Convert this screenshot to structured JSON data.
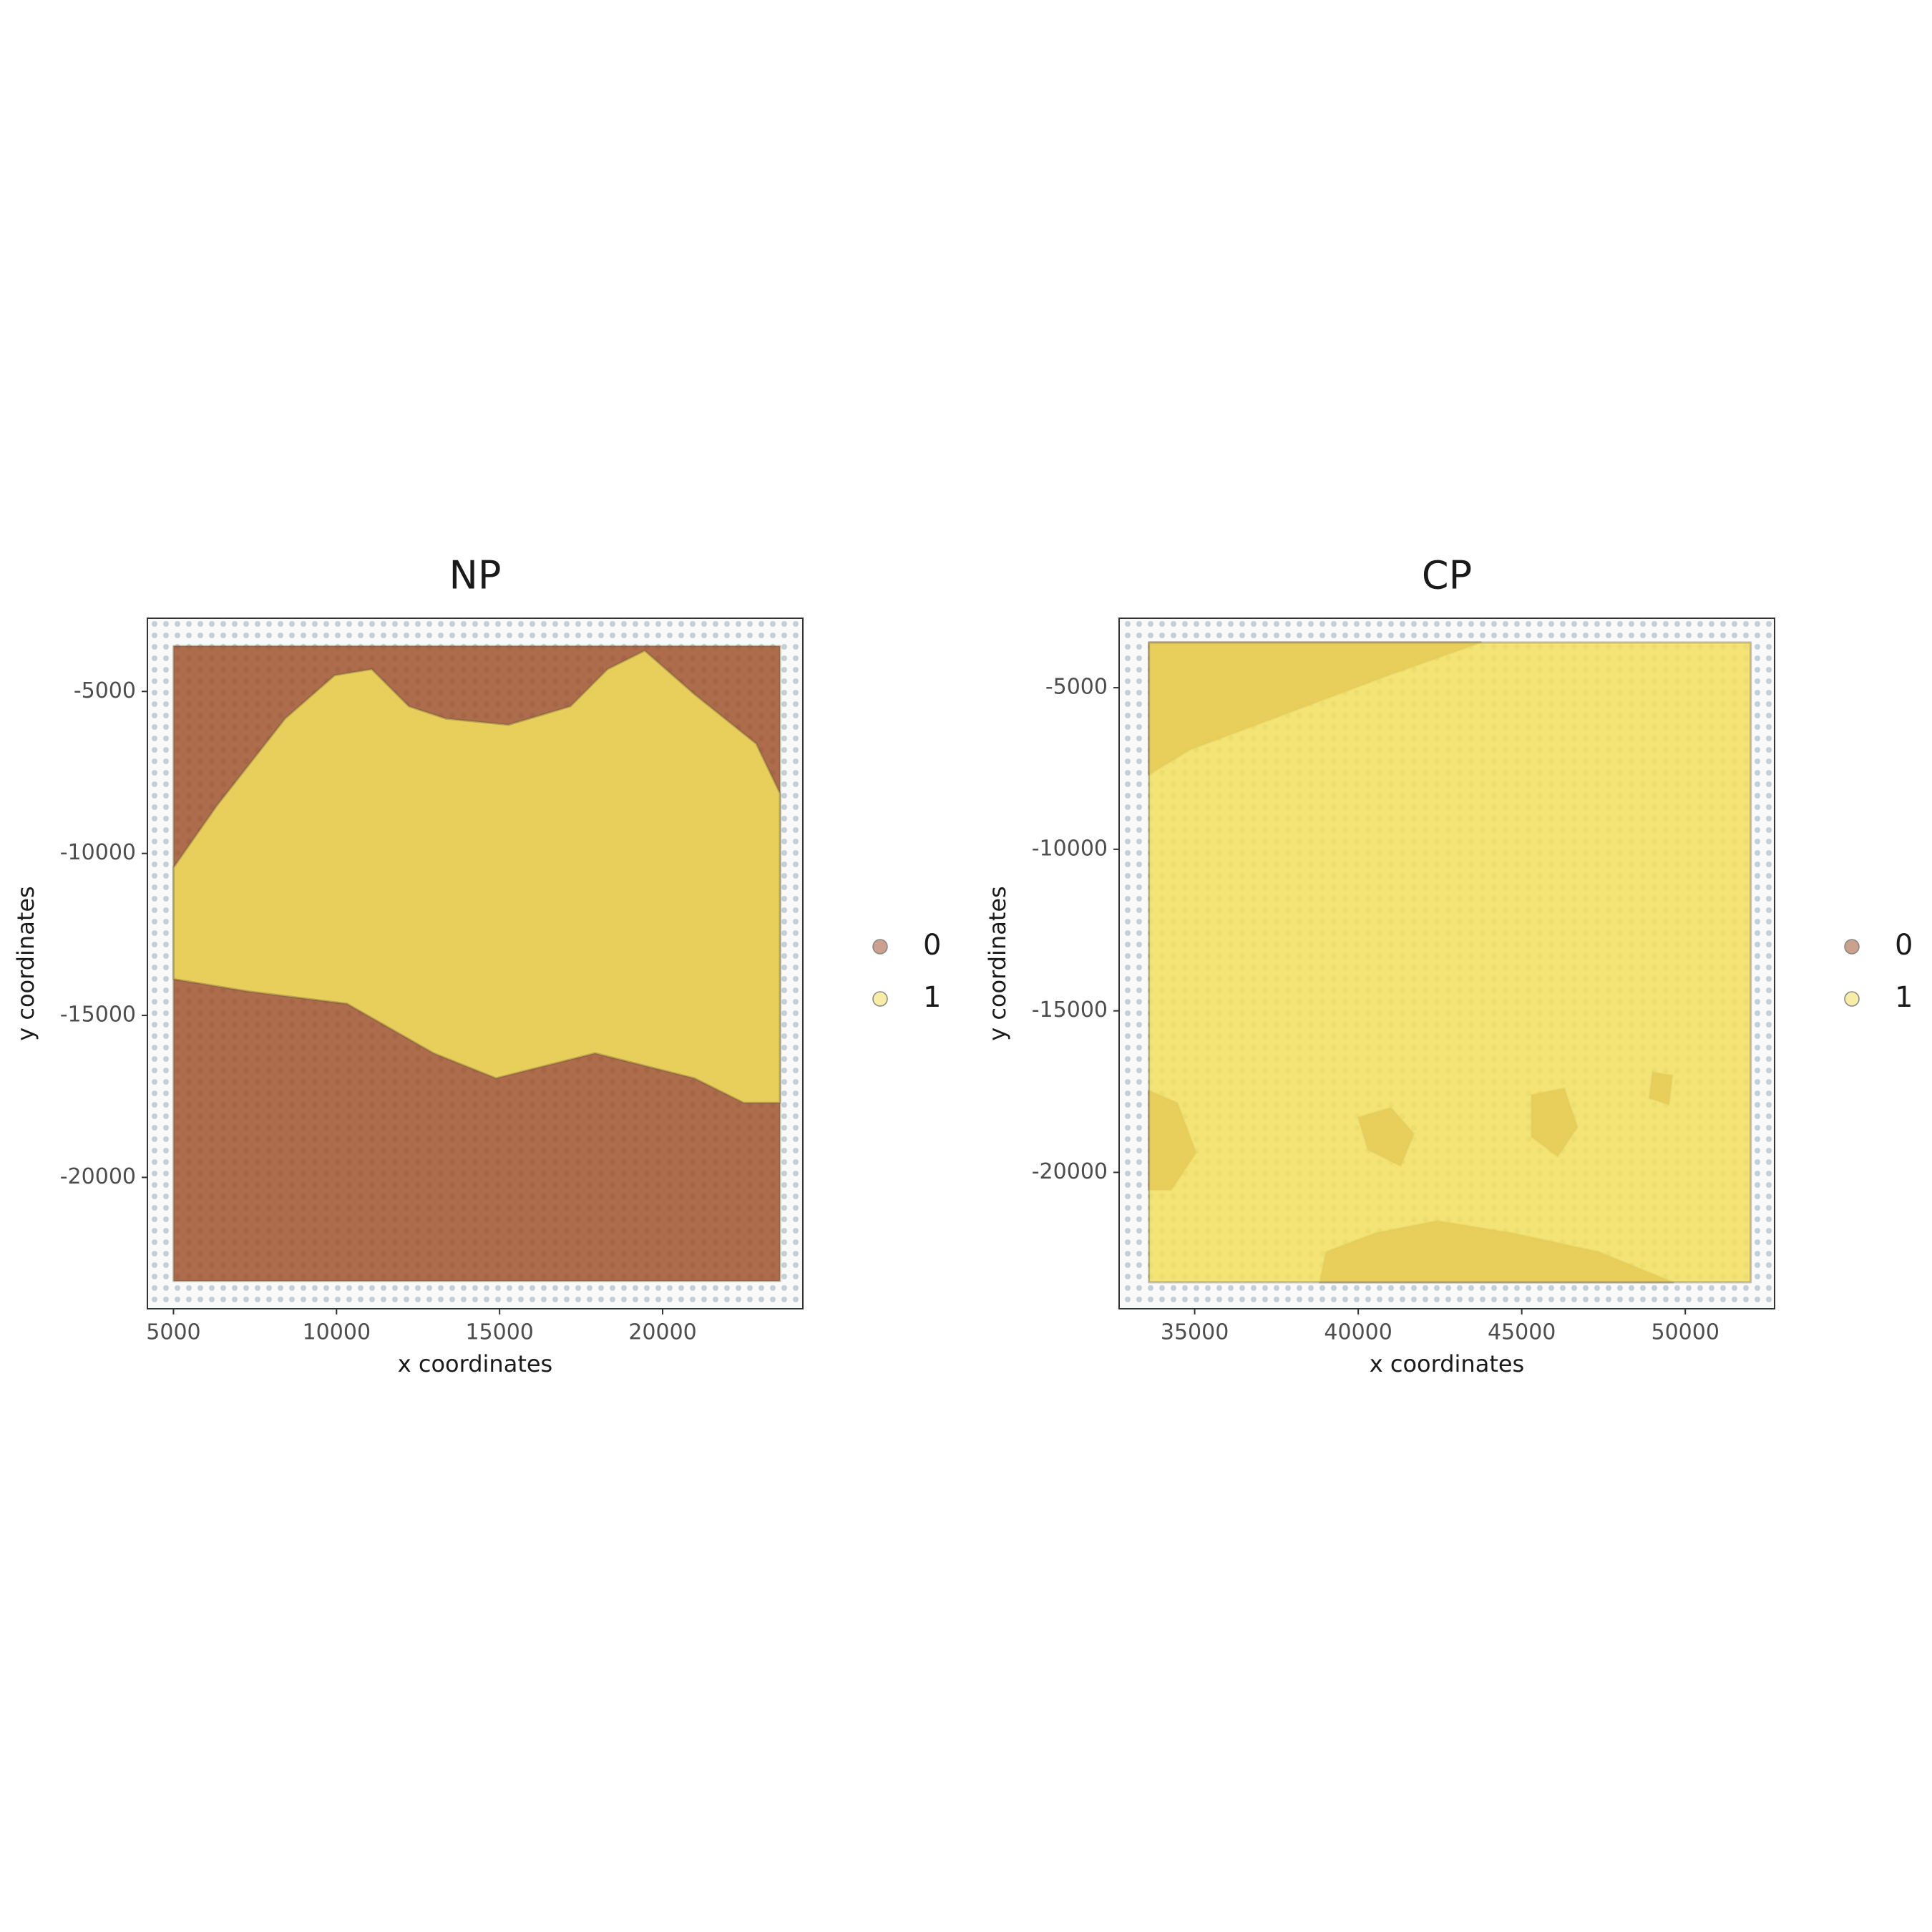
{
  "chart_data": [
    {
      "type": "area",
      "title": "NP",
      "x_label": "x coordinates",
      "y_label": "y coordinates",
      "xlim": [
        4200,
        24300
      ],
      "ylim": [
        -24055,
        -2740
      ],
      "xticks": [
        5000,
        10000,
        15000,
        20000
      ],
      "yticks": [
        -5000,
        -10000,
        -15000,
        -20000
      ],
      "series": [
        {
          "name": "0",
          "color": "#a0522d",
          "x": [
            5000,
            23600,
            23600,
            5000
          ],
          "y": [
            -3600,
            -3600,
            -23200,
            -23200
          ]
        },
        {
          "name": "1",
          "color": "#f2df5e",
          "x": [
            5000,
            6330,
            8420,
            9940,
            11080,
            12220,
            13360,
            15270,
            17170,
            18310,
            19450,
            20970,
            22870,
            23600,
            23600,
            22490,
            20970,
            17930,
            14890,
            12980,
            10320,
            7280,
            5000
          ],
          "y": [
            -10430,
            -8520,
            -5840,
            -4500,
            -4310,
            -5460,
            -5840,
            -6030,
            -5460,
            -4310,
            -3740,
            -5080,
            -6610,
            -8140,
            -17700,
            -17700,
            -16940,
            -16170,
            -16940,
            -16170,
            -14640,
            -14260,
            -13880
          ]
        }
      ]
    },
    {
      "type": "area",
      "title": "CP",
      "x_label": "x coordinates",
      "y_label": "y coordinates",
      "xlim": [
        32690,
        52730
      ],
      "ylim": [
        -24220,
        -2850
      ],
      "xticks": [
        35000,
        40000,
        45000,
        50000
      ],
      "yticks": [
        -5000,
        -10000,
        -15000,
        -20000
      ],
      "series": [
        {
          "name": "0",
          "color": "#a0522d",
          "x": [
            33600,
            43750,
            40910,
            37880,
            34850,
            33600,
            null,
            33600,
            34470,
            35040,
            34280,
            33600,
            null,
            38830,
            39020,
            40530,
            42420,
            44700,
            47350,
            49620,
            null,
            40000,
            41000,
            41700,
            41300,
            40300,
            null,
            45300,
            46300,
            46700,
            46100,
            45300,
            null,
            49000,
            49600,
            49500,
            48900
          ],
          "y": [
            -3600,
            -3600,
            -4620,
            -5770,
            -6920,
            -7690,
            null,
            -17470,
            -17850,
            -19390,
            -20540,
            -20540,
            null,
            -23400,
            -22460,
            -21880,
            -21500,
            -21880,
            -22460,
            -23400,
            null,
            -18300,
            -18000,
            -18800,
            -19800,
            -19300,
            null,
            -17600,
            -17400,
            -18600,
            -19500,
            -18900,
            null,
            -16900,
            -17000,
            -17900,
            -17700
          ]
        },
        {
          "name": "1",
          "color": "#f2df5e",
          "x": [
            33600,
            52000,
            52000,
            33600
          ],
          "y": [
            -3600,
            -3600,
            -23400,
            -23400
          ]
        }
      ]
    }
  ]
}
